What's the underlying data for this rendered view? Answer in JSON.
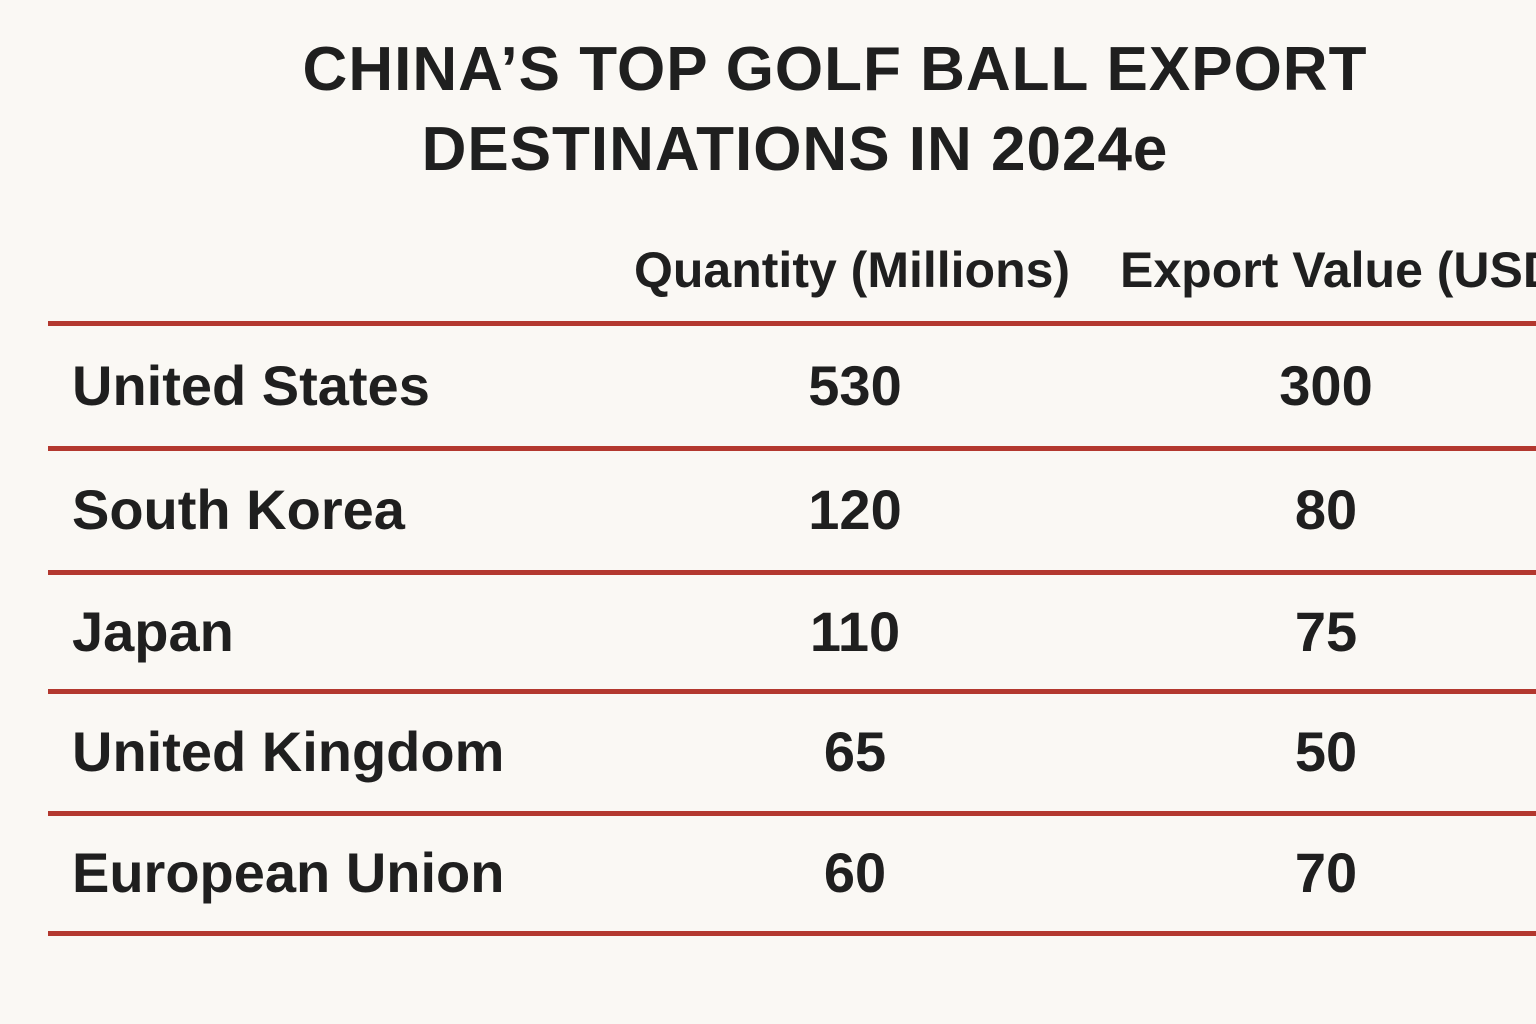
{
  "chart_data": {
    "type": "table",
    "title": [
      "CHINA’S TOP GOLF BALL EXPORT",
      "DESTINATIONS IN 2024e"
    ],
    "columns": [
      "",
      "Quantity (Millions)",
      "Export Value (USD"
    ],
    "rows": [
      {
        "country": "United States",
        "quantity": "530",
        "value": "300"
      },
      {
        "country": "South Korea",
        "quantity": "120",
        "value": "80"
      },
      {
        "country": "Japan",
        "quantity": "110",
        "value": "75"
      },
      {
        "country": "United Kingdom",
        "quantity": "65",
        "value": "50"
      },
      {
        "country": "European Union",
        "quantity": "60",
        "value": "70"
      }
    ],
    "colors": {
      "rule": "#b3382f",
      "text": "#1f1f1f",
      "background": "#faf8f4"
    }
  }
}
